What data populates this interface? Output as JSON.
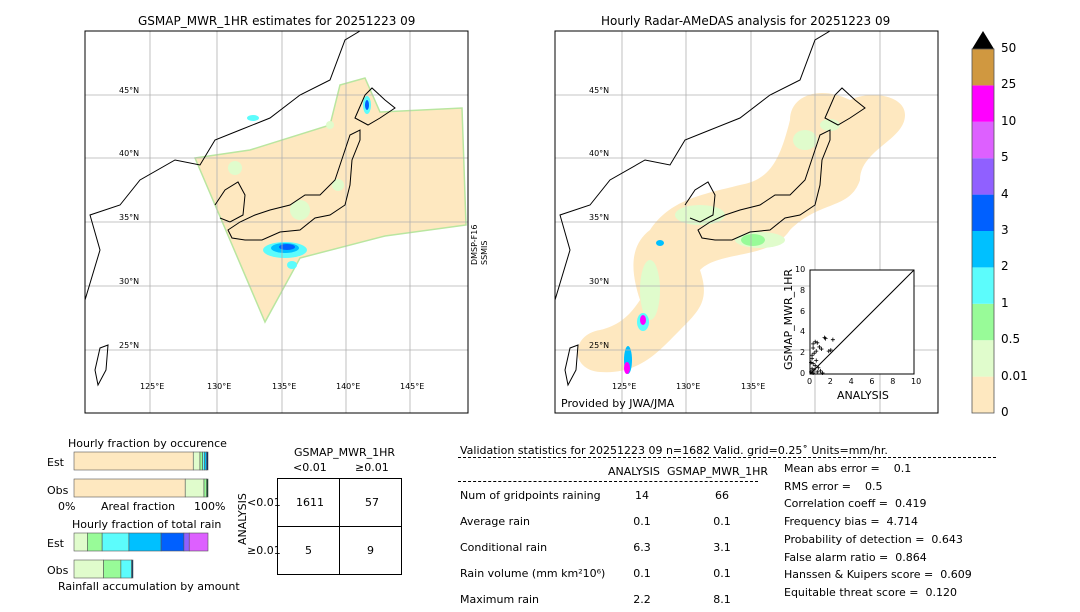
{
  "left_map": {
    "title": "GSMAP_MWR_1HR estimates for 20251223 09",
    "lat_labels": [
      "45°N",
      "40°N",
      "35°N",
      "30°N",
      "25°N"
    ],
    "lon_labels": [
      "125°E",
      "130°E",
      "135°E",
      "140°E",
      "145°E"
    ],
    "side_label_1": "DMSP-F16",
    "side_label_2": "SSMIS"
  },
  "right_map": {
    "title": "Hourly Radar-AMeDAS analysis for 20251223 09",
    "lat_labels": [
      "45°N",
      "40°N",
      "35°N",
      "30°N",
      "25°N"
    ],
    "lon_labels": [
      "125°E",
      "130°E",
      "135°E"
    ],
    "credit": "Provided by JWA/JMA"
  },
  "colors": {
    "levels": [
      "#fee8c0",
      "#e0fccc",
      "#98fb98",
      "#5cfcfc",
      "#00c0ff",
      "#0060ff",
      "#9060ff",
      "#dd60ff",
      "#ff00ff",
      "#d09840"
    ],
    "extend": "#000000",
    "land_fill": "#ffffff",
    "grid": "#b0b0b0"
  },
  "chart_data": [
    {
      "type": "colorbar",
      "tick_labels": [
        "0",
        "0.01",
        "0.5",
        "1",
        "2",
        "3",
        "4",
        "5",
        "10",
        "25",
        "50"
      ]
    },
    {
      "type": "scatter",
      "xlabel": "ANALYSIS",
      "ylabel": "GSMAP_MWR_1HR",
      "xlim": [
        0,
        10
      ],
      "ylim": [
        0,
        10
      ],
      "xticks": [
        "0",
        "2",
        "4",
        "6",
        "8",
        "10"
      ],
      "yticks": [
        "0",
        "2",
        "4",
        "6",
        "8",
        "10"
      ],
      "points": [
        [
          0.1,
          0.2
        ],
        [
          0.2,
          0.5
        ],
        [
          0.3,
          1.0
        ],
        [
          0.2,
          1.5
        ],
        [
          0.4,
          2.0
        ],
        [
          0.3,
          2.5
        ],
        [
          0.5,
          3.1
        ],
        [
          0.7,
          3.0
        ],
        [
          1.4,
          3.5
        ],
        [
          1.5,
          3.4
        ],
        [
          2.2,
          3.3
        ],
        [
          0.9,
          2.6
        ],
        [
          1.1,
          2.4
        ],
        [
          1.8,
          2.2
        ],
        [
          2.0,
          2.3
        ],
        [
          0.6,
          1.3
        ],
        [
          0.8,
          0.6
        ],
        [
          1.0,
          0.3
        ],
        [
          0.3,
          0.1
        ],
        [
          0.5,
          0.8
        ],
        [
          0.1,
          1.1
        ],
        [
          0.2,
          1.8
        ],
        [
          0.4,
          0.4
        ],
        [
          0.6,
          2.2
        ],
        [
          1.2,
          0.1
        ],
        [
          0.7,
          0.2
        ],
        [
          0.3,
          2.9
        ]
      ],
      "diagonal": true
    },
    {
      "type": "bar",
      "title": "Hourly fraction by occurence",
      "xlabel": "Areal fraction",
      "x_tick_labels": [
        "0%",
        "100%"
      ],
      "categories": [
        "Est",
        "Obs"
      ],
      "stacked_fractions": {
        "Est": [
          0.89,
          0.05,
          0.02,
          0.015,
          0.015,
          0.01
        ],
        "Obs": [
          0.83,
          0.14,
          0.02,
          0.01
        ]
      }
    },
    {
      "type": "bar",
      "title": "Hourly fraction of total rain",
      "xlabel": "Rainfall accumulation by amount",
      "categories": [
        "Est",
        "Obs"
      ],
      "stacked_fractions": {
        "Est": [
          0.1,
          0.11,
          0.2,
          0.24,
          0.17,
          0.04,
          0.14
        ],
        "Obs": [
          0.22,
          0.13,
          0.08,
          0.01
        ]
      }
    },
    {
      "type": "table",
      "title": "GSMAP_MWR_1HR",
      "col_headers": [
        "<0.01",
        "≥0.01"
      ],
      "row_title": "ANALYSIS",
      "row_headers": [
        "<0.01",
        "≥0.01"
      ],
      "cells": [
        [
          "1611",
          "57"
        ],
        [
          "5",
          "9"
        ]
      ]
    }
  ],
  "stats": {
    "header": "Validation statistics for 20251223 09  n=1682 Valid. grid=0.25˚ Units=mm/hr.",
    "col_analysis": "ANALYSIS",
    "col_gsmap": "GSMAP_MWR_1HR",
    "rows": [
      {
        "label": "Num of gridpoints raining",
        "a": "14",
        "g": "66"
      },
      {
        "label": "Average rain",
        "a": "0.1",
        "g": "0.1"
      },
      {
        "label": "Conditional rain",
        "a": "6.3",
        "g": "3.1"
      },
      {
        "label": "Rain volume (mm km²10⁶)",
        "a": "0.1",
        "g": "0.1"
      },
      {
        "label": "Maximum rain",
        "a": "2.2",
        "g": "8.1"
      }
    ],
    "scores": [
      "Mean abs error =    0.1",
      "RMS error =    0.5",
      "Correlation coeff =  0.419",
      "Frequency bias =  4.714",
      "Probability of detection =  0.643",
      "False alarm ratio =  0.864",
      "Hanssen & Kuipers score =  0.609",
      "Equitable threat score =  0.120"
    ]
  }
}
